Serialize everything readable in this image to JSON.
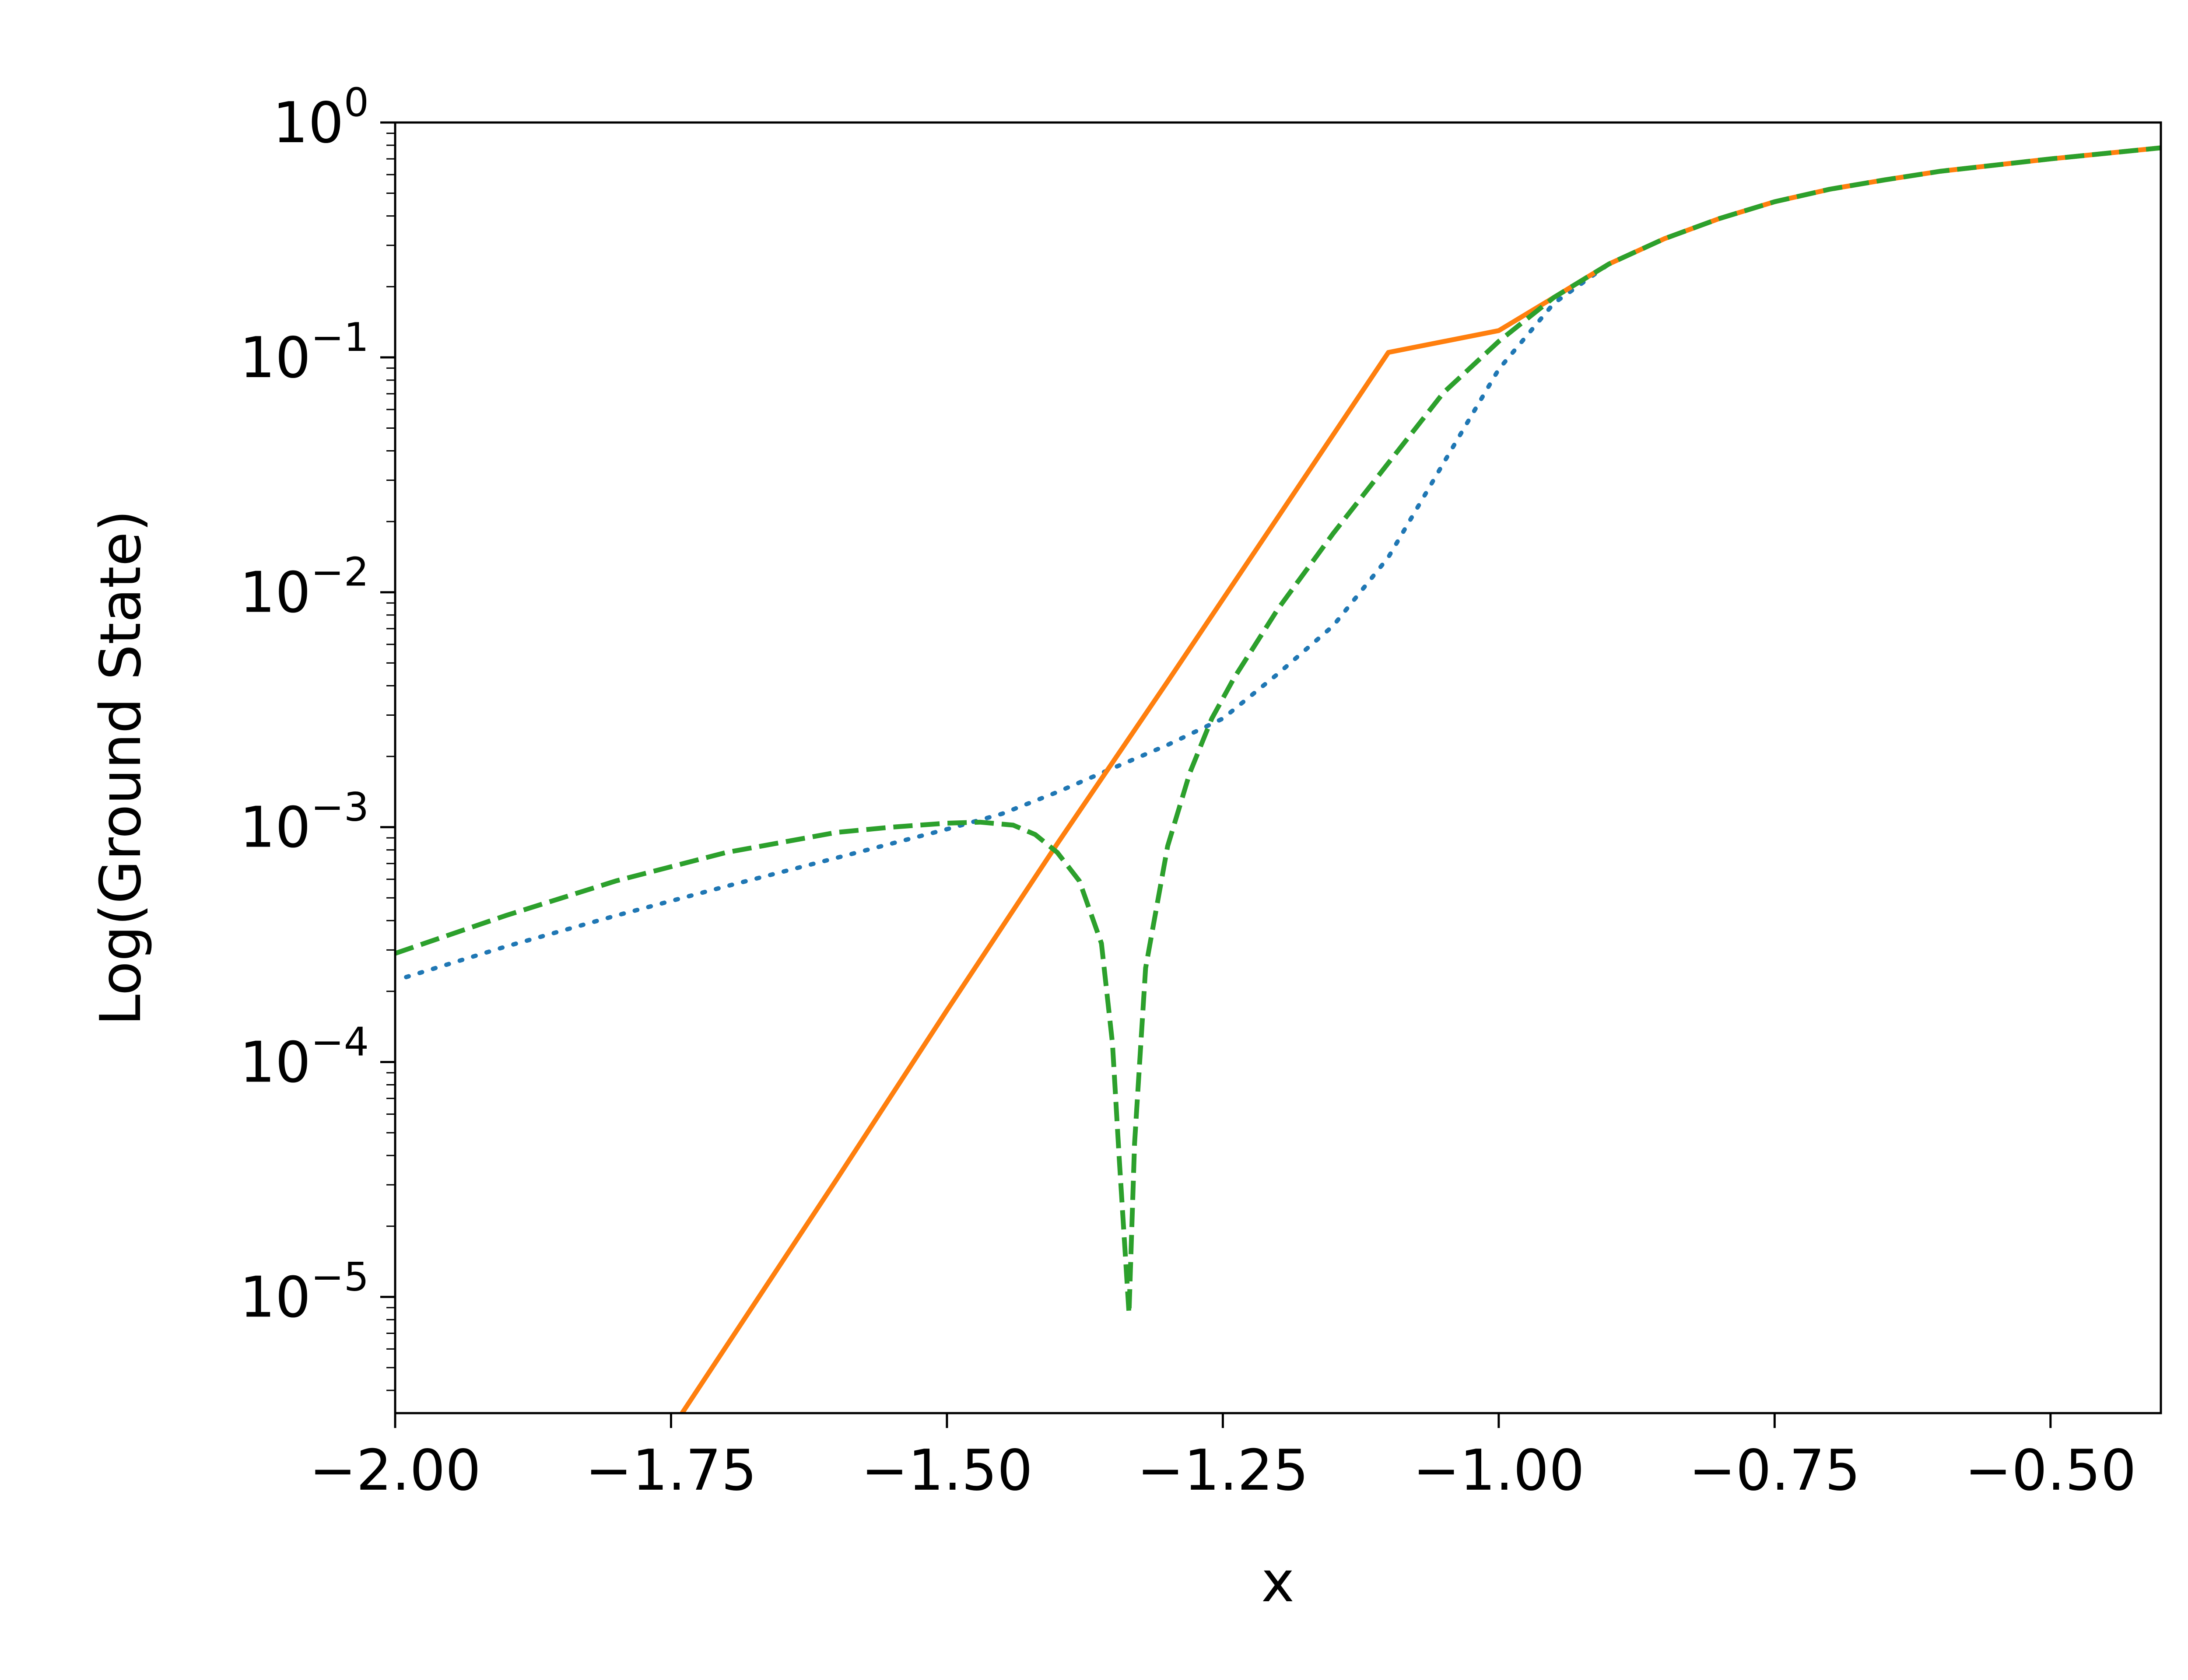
{
  "chart_data": {
    "type": "line",
    "title": "",
    "xlabel": "x",
    "ylabel": "Log(Ground State)",
    "xlim": [
      -2.0,
      -0.4
    ],
    "ylim": [
      3.2e-06,
      1.0
    ],
    "yscale": "log",
    "grid": false,
    "legend": "none",
    "x_ticks": [
      {
        "value": -2.0,
        "label": "−2.00"
      },
      {
        "value": -1.75,
        "label": "−1.75"
      },
      {
        "value": -1.5,
        "label": "−1.50"
      },
      {
        "value": -1.25,
        "label": "−1.25"
      },
      {
        "value": -1.0,
        "label": "−1.00"
      },
      {
        "value": -0.75,
        "label": "−0.75"
      },
      {
        "value": -0.5,
        "label": "−0.50"
      }
    ],
    "y_ticks": [
      {
        "value": 1,
        "base": "10",
        "exp": "0"
      },
      {
        "value": 0.1,
        "base": "10",
        "exp": "−1"
      },
      {
        "value": 0.01,
        "base": "10",
        "exp": "−2"
      },
      {
        "value": 0.001,
        "base": "10",
        "exp": "−3"
      },
      {
        "value": 0.0001,
        "base": "10",
        "exp": "−4"
      },
      {
        "value": 1e-05,
        "base": "10",
        "exp": "−5"
      }
    ],
    "series": [
      {
        "style": "dotted",
        "color": "#1f77b4",
        "points": [
          [
            -1.99,
            0.00023
          ],
          [
            -1.9,
            0.00031
          ],
          [
            -1.8,
            0.00042
          ],
          [
            -1.7,
            0.00056
          ],
          [
            -1.6,
            0.00074
          ],
          [
            -1.5,
            0.00098
          ],
          [
            -1.45,
            0.00114
          ],
          [
            -1.4,
            0.00141
          ],
          [
            -1.35,
            0.00178
          ],
          [
            -1.3,
            0.00224
          ],
          [
            -1.25,
            0.0029
          ],
          [
            -1.2,
            0.0045
          ],
          [
            -1.15,
            0.0072
          ],
          [
            -1.1,
            0.0141
          ],
          [
            -1.05,
            0.0355
          ],
          [
            -1.0,
            0.089
          ],
          [
            -0.95,
            0.17
          ],
          [
            -0.9,
            0.25
          ],
          [
            -0.85,
            0.32
          ],
          [
            -0.8,
            0.39
          ],
          [
            -0.75,
            0.46
          ],
          [
            -0.7,
            0.52
          ],
          [
            -0.65,
            0.57
          ],
          [
            -0.6,
            0.62
          ],
          [
            -0.5,
            0.7
          ],
          [
            -0.4,
            0.78
          ]
        ]
      },
      {
        "style": "solid",
        "color": "#ff7f0e",
        "points": [
          [
            -1.74,
            3.2e-06
          ],
          [
            -1.6,
            3.16e-05
          ],
          [
            -1.5,
            0.000166
          ],
          [
            -1.4,
            0.00085
          ],
          [
            -1.3,
            0.00417
          ],
          [
            -1.2,
            0.0209
          ],
          [
            -1.1,
            0.105
          ],
          [
            -1.0,
            0.13
          ],
          [
            -0.95,
            0.18
          ],
          [
            -0.9,
            0.25
          ],
          [
            -0.85,
            0.32
          ],
          [
            -0.8,
            0.39
          ],
          [
            -0.75,
            0.46
          ],
          [
            -0.7,
            0.52
          ],
          [
            -0.65,
            0.57
          ],
          [
            -0.6,
            0.62
          ],
          [
            -0.5,
            0.7
          ],
          [
            -0.4,
            0.78
          ]
        ]
      },
      {
        "style": "dashed",
        "color": "#2ca02c",
        "points": [
          [
            -2.0,
            0.00029
          ],
          [
            -1.9,
            0.00042
          ],
          [
            -1.8,
            0.00059
          ],
          [
            -1.7,
            0.00078
          ],
          [
            -1.6,
            0.00095
          ],
          [
            -1.55,
            0.001
          ],
          [
            -1.5,
            0.00104
          ],
          [
            -1.47,
            0.00105
          ],
          [
            -1.44,
            0.00102
          ],
          [
            -1.42,
            0.00093
          ],
          [
            -1.4,
            0.00078
          ],
          [
            -1.38,
            0.00059
          ],
          [
            -1.36,
            0.00032
          ],
          [
            -1.35,
            0.00012
          ],
          [
            -1.344,
            3.98e-05
          ],
          [
            -1.335,
            8.5e-06
          ],
          [
            -1.33,
            4.5e-05
          ],
          [
            -1.32,
            0.000251
          ],
          [
            -1.3,
            0.00083
          ],
          [
            -1.28,
            0.0017
          ],
          [
            -1.26,
            0.0029
          ],
          [
            -1.24,
            0.0043
          ],
          [
            -1.2,
            0.0085
          ],
          [
            -1.15,
            0.0178
          ],
          [
            -1.1,
            0.0355
          ],
          [
            -1.05,
            0.0708
          ],
          [
            -1.0,
            0.117
          ],
          [
            -0.95,
            0.18
          ],
          [
            -0.9,
            0.25
          ],
          [
            -0.85,
            0.32
          ],
          [
            -0.8,
            0.39
          ],
          [
            -0.75,
            0.46
          ],
          [
            -0.7,
            0.52
          ],
          [
            -0.65,
            0.57
          ],
          [
            -0.6,
            0.62
          ],
          [
            -0.5,
            0.7
          ],
          [
            -0.4,
            0.78
          ]
        ]
      }
    ]
  }
}
